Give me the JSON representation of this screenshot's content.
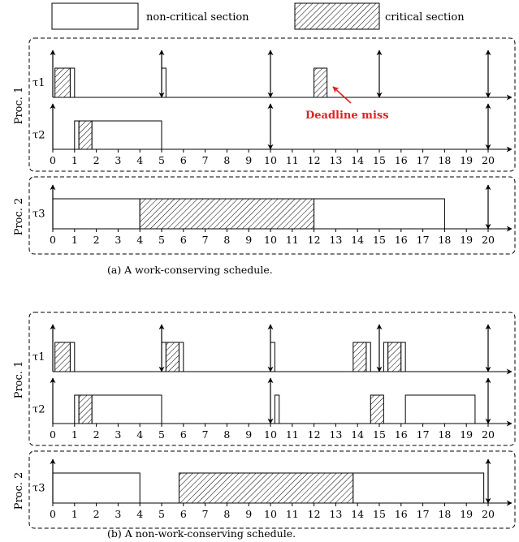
{
  "legend": {
    "non_critical": "non-critical section",
    "critical": "critical section"
  },
  "ticks": [
    "0",
    "1",
    "2",
    "3",
    "4",
    "5",
    "6",
    "7",
    "8",
    "9",
    "10",
    "11",
    "12",
    "13",
    "14",
    "15",
    "16",
    "17",
    "18",
    "19",
    "20"
  ],
  "diagrams": [
    {
      "caption": "(a) A work-conserving schedule.",
      "annotation": "Deadline miss",
      "proc1": {
        "label": "Proc. 1",
        "tasks": [
          {
            "name": "τ1",
            "segments": [
              {
                "start": 0.1,
                "end": 0.8,
                "kind": "critical"
              },
              {
                "start": 0.8,
                "end": 1.0,
                "kind": "normal"
              },
              {
                "start": 5.0,
                "end": 5.2,
                "kind": "normal"
              },
              {
                "start": 12.0,
                "end": 12.6,
                "kind": "critical"
              }
            ],
            "events": [
              {
                "t": 0,
                "type": "up"
              },
              {
                "t": 5,
                "type": "both"
              },
              {
                "t": 10,
                "type": "both"
              },
              {
                "t": 15,
                "type": "both"
              },
              {
                "t": 20,
                "type": "both"
              }
            ]
          },
          {
            "name": "τ2",
            "segments": [
              {
                "start": 1.0,
                "end": 1.2,
                "kind": "normal"
              },
              {
                "start": 1.2,
                "end": 1.8,
                "kind": "critical"
              },
              {
                "start": 1.8,
                "end": 5.0,
                "kind": "normal"
              }
            ],
            "events": [
              {
                "t": 0,
                "type": "up"
              },
              {
                "t": 10,
                "type": "both"
              },
              {
                "t": 20,
                "type": "both"
              }
            ]
          }
        ]
      },
      "proc2": {
        "label": "Proc. 2",
        "tasks": [
          {
            "name": "τ3",
            "segments": [
              {
                "start": 0,
                "end": 4,
                "kind": "normal"
              },
              {
                "start": 4,
                "end": 12,
                "kind": "critical"
              },
              {
                "start": 12,
                "end": 18,
                "kind": "normal"
              }
            ],
            "events": [
              {
                "t": 0,
                "type": "up"
              },
              {
                "t": 20,
                "type": "both"
              }
            ]
          }
        ]
      }
    },
    {
      "caption": "(b) A non-work-conserving schedule.",
      "annotation": "",
      "proc1": {
        "label": "Proc. 1",
        "tasks": [
          {
            "name": "τ1",
            "segments": [
              {
                "start": 0.1,
                "end": 0.8,
                "kind": "critical"
              },
              {
                "start": 0.8,
                "end": 1.0,
                "kind": "normal"
              },
              {
                "start": 5.0,
                "end": 5.2,
                "kind": "normal"
              },
              {
                "start": 5.2,
                "end": 5.8,
                "kind": "critical"
              },
              {
                "start": 5.8,
                "end": 6.0,
                "kind": "normal"
              },
              {
                "start": 10.0,
                "end": 10.2,
                "kind": "normal"
              },
              {
                "start": 13.8,
                "end": 14.4,
                "kind": "critical"
              },
              {
                "start": 14.4,
                "end": 14.6,
                "kind": "normal"
              },
              {
                "start": 15.2,
                "end": 15.4,
                "kind": "normal"
              },
              {
                "start": 15.4,
                "end": 16.0,
                "kind": "critical"
              },
              {
                "start": 16.0,
                "end": 16.2,
                "kind": "normal"
              }
            ],
            "events": [
              {
                "t": 0,
                "type": "up"
              },
              {
                "t": 5,
                "type": "both"
              },
              {
                "t": 10,
                "type": "both"
              },
              {
                "t": 15,
                "type": "both"
              },
              {
                "t": 20,
                "type": "both"
              }
            ]
          },
          {
            "name": "τ2",
            "segments": [
              {
                "start": 1.0,
                "end": 1.2,
                "kind": "normal"
              },
              {
                "start": 1.2,
                "end": 1.8,
                "kind": "critical"
              },
              {
                "start": 1.8,
                "end": 5.0,
                "kind": "normal"
              },
              {
                "start": 10.2,
                "end": 10.4,
                "kind": "normal"
              },
              {
                "start": 14.6,
                "end": 15.2,
                "kind": "critical"
              },
              {
                "start": 16.2,
                "end": 19.4,
                "kind": "normal"
              }
            ],
            "events": [
              {
                "t": 0,
                "type": "up"
              },
              {
                "t": 10,
                "type": "both"
              },
              {
                "t": 20,
                "type": "both"
              }
            ]
          }
        ]
      },
      "proc2": {
        "label": "Proc. 2",
        "tasks": [
          {
            "name": "τ3",
            "segments": [
              {
                "start": 0,
                "end": 4,
                "kind": "normal"
              },
              {
                "start": 5.8,
                "end": 13.8,
                "kind": "critical"
              },
              {
                "start": 13.8,
                "end": 19.8,
                "kind": "normal"
              }
            ],
            "events": [
              {
                "t": 0,
                "type": "up"
              },
              {
                "t": 20,
                "type": "both"
              }
            ]
          }
        ]
      }
    }
  ]
}
